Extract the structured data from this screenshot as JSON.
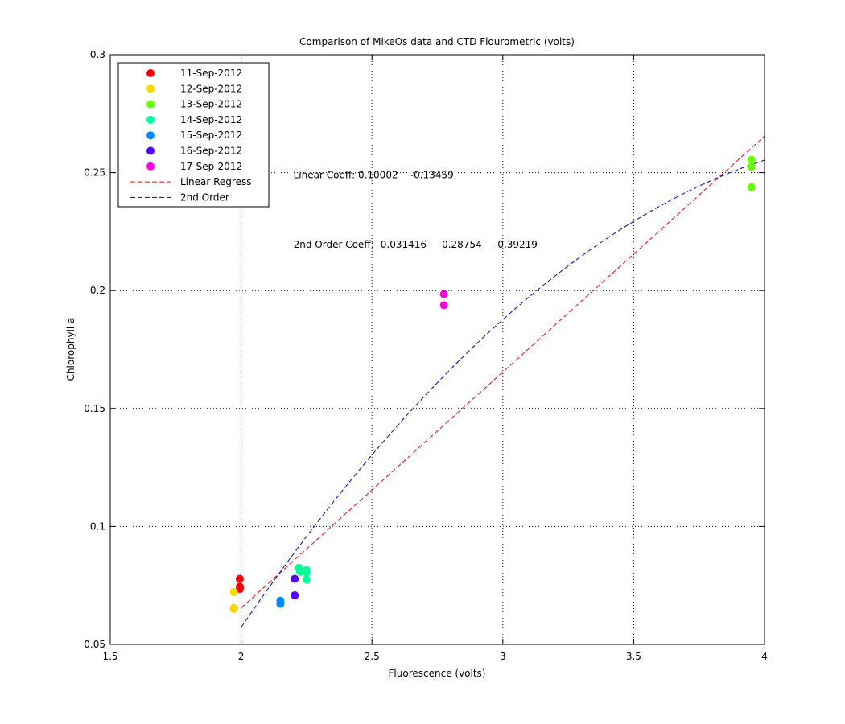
{
  "chart_data": {
    "type": "scatter",
    "title": "Comparison of MikeOs data and CTD Flourometric (volts)",
    "xlabel": "Fluorescence (volts)",
    "ylabel": "Chlorophyll a",
    "xlim": [
      1.5,
      4
    ],
    "ylim": [
      0.05,
      0.3
    ],
    "x_ticks": [
      1.5,
      2,
      2.5,
      3,
      3.5,
      4
    ],
    "y_ticks": [
      0.05,
      0.1,
      0.15,
      0.2,
      0.25,
      0.3
    ],
    "x_tick_labels": [
      "1.5",
      "2",
      "2.5",
      "3",
      "3.5",
      "4"
    ],
    "y_tick_labels": [
      "0.05",
      "0.1",
      "0.15",
      "0.2",
      "0.25",
      "0.3"
    ],
    "grid": true,
    "legend_position": "top-left",
    "series": [
      {
        "name": "11-Sep-2012",
        "color": "#ff0000",
        "marker": "circle",
        "points": [
          [
            1.995,
            0.0778
          ],
          [
            1.995,
            0.0745
          ],
          [
            1.995,
            0.0735
          ]
        ]
      },
      {
        "name": "12-Sep-2012",
        "color": "#ffd700",
        "marker": "circle",
        "points": [
          [
            1.972,
            0.0722
          ],
          [
            1.972,
            0.0655
          ],
          [
            1.972,
            0.065
          ]
        ]
      },
      {
        "name": "13-Sep-2012",
        "color": "#66ff00",
        "marker": "circle",
        "points": [
          [
            3.95,
            0.2555
          ],
          [
            3.95,
            0.2525
          ],
          [
            3.95,
            0.2438
          ]
        ]
      },
      {
        "name": "14-Sep-2012",
        "color": "#00ff99",
        "marker": "circle",
        "points": [
          [
            2.22,
            0.0825
          ],
          [
            2.225,
            0.0808
          ],
          [
            2.25,
            0.0815
          ],
          [
            2.25,
            0.0805
          ],
          [
            2.25,
            0.0775
          ]
        ]
      },
      {
        "name": "15-Sep-2012",
        "color": "#0088ff",
        "marker": "circle",
        "points": [
          [
            2.15,
            0.0685
          ],
          [
            2.15,
            0.0672
          ]
        ]
      },
      {
        "name": "16-Sep-2012",
        "color": "#5500ff",
        "marker": "circle",
        "points": [
          [
            2.205,
            0.0778
          ],
          [
            2.205,
            0.0708
          ]
        ]
      },
      {
        "name": "17-Sep-2012",
        "color": "#ff00dd",
        "marker": "circle",
        "points": [
          [
            2.775,
            0.1985
          ],
          [
            2.775,
            0.1938
          ]
        ]
      }
    ],
    "fits": [
      {
        "name": "Linear Regress",
        "color": "#ff0000",
        "style": "dashed",
        "kind": "linear",
        "coefficients": [
          0.10002,
          -0.13459
        ],
        "x_range": [
          2,
          4
        ]
      },
      {
        "name": "2nd Order",
        "color": "#0000cc",
        "style": "dashed",
        "kind": "quadratic",
        "coefficients": [
          -0.031416,
          0.28754,
          -0.39219
        ],
        "x_range": [
          2,
          4
        ]
      }
    ],
    "annotations": [
      {
        "id": "linear",
        "text": "Linear Coeff: 0.10002    -0.13459",
        "x": 2.2,
        "y": 0.249
      },
      {
        "id": "second",
        "text": "2nd Order Coeff: -0.031416     0.28754    -0.39219",
        "x": 2.2,
        "y": 0.2195
      }
    ]
  }
}
